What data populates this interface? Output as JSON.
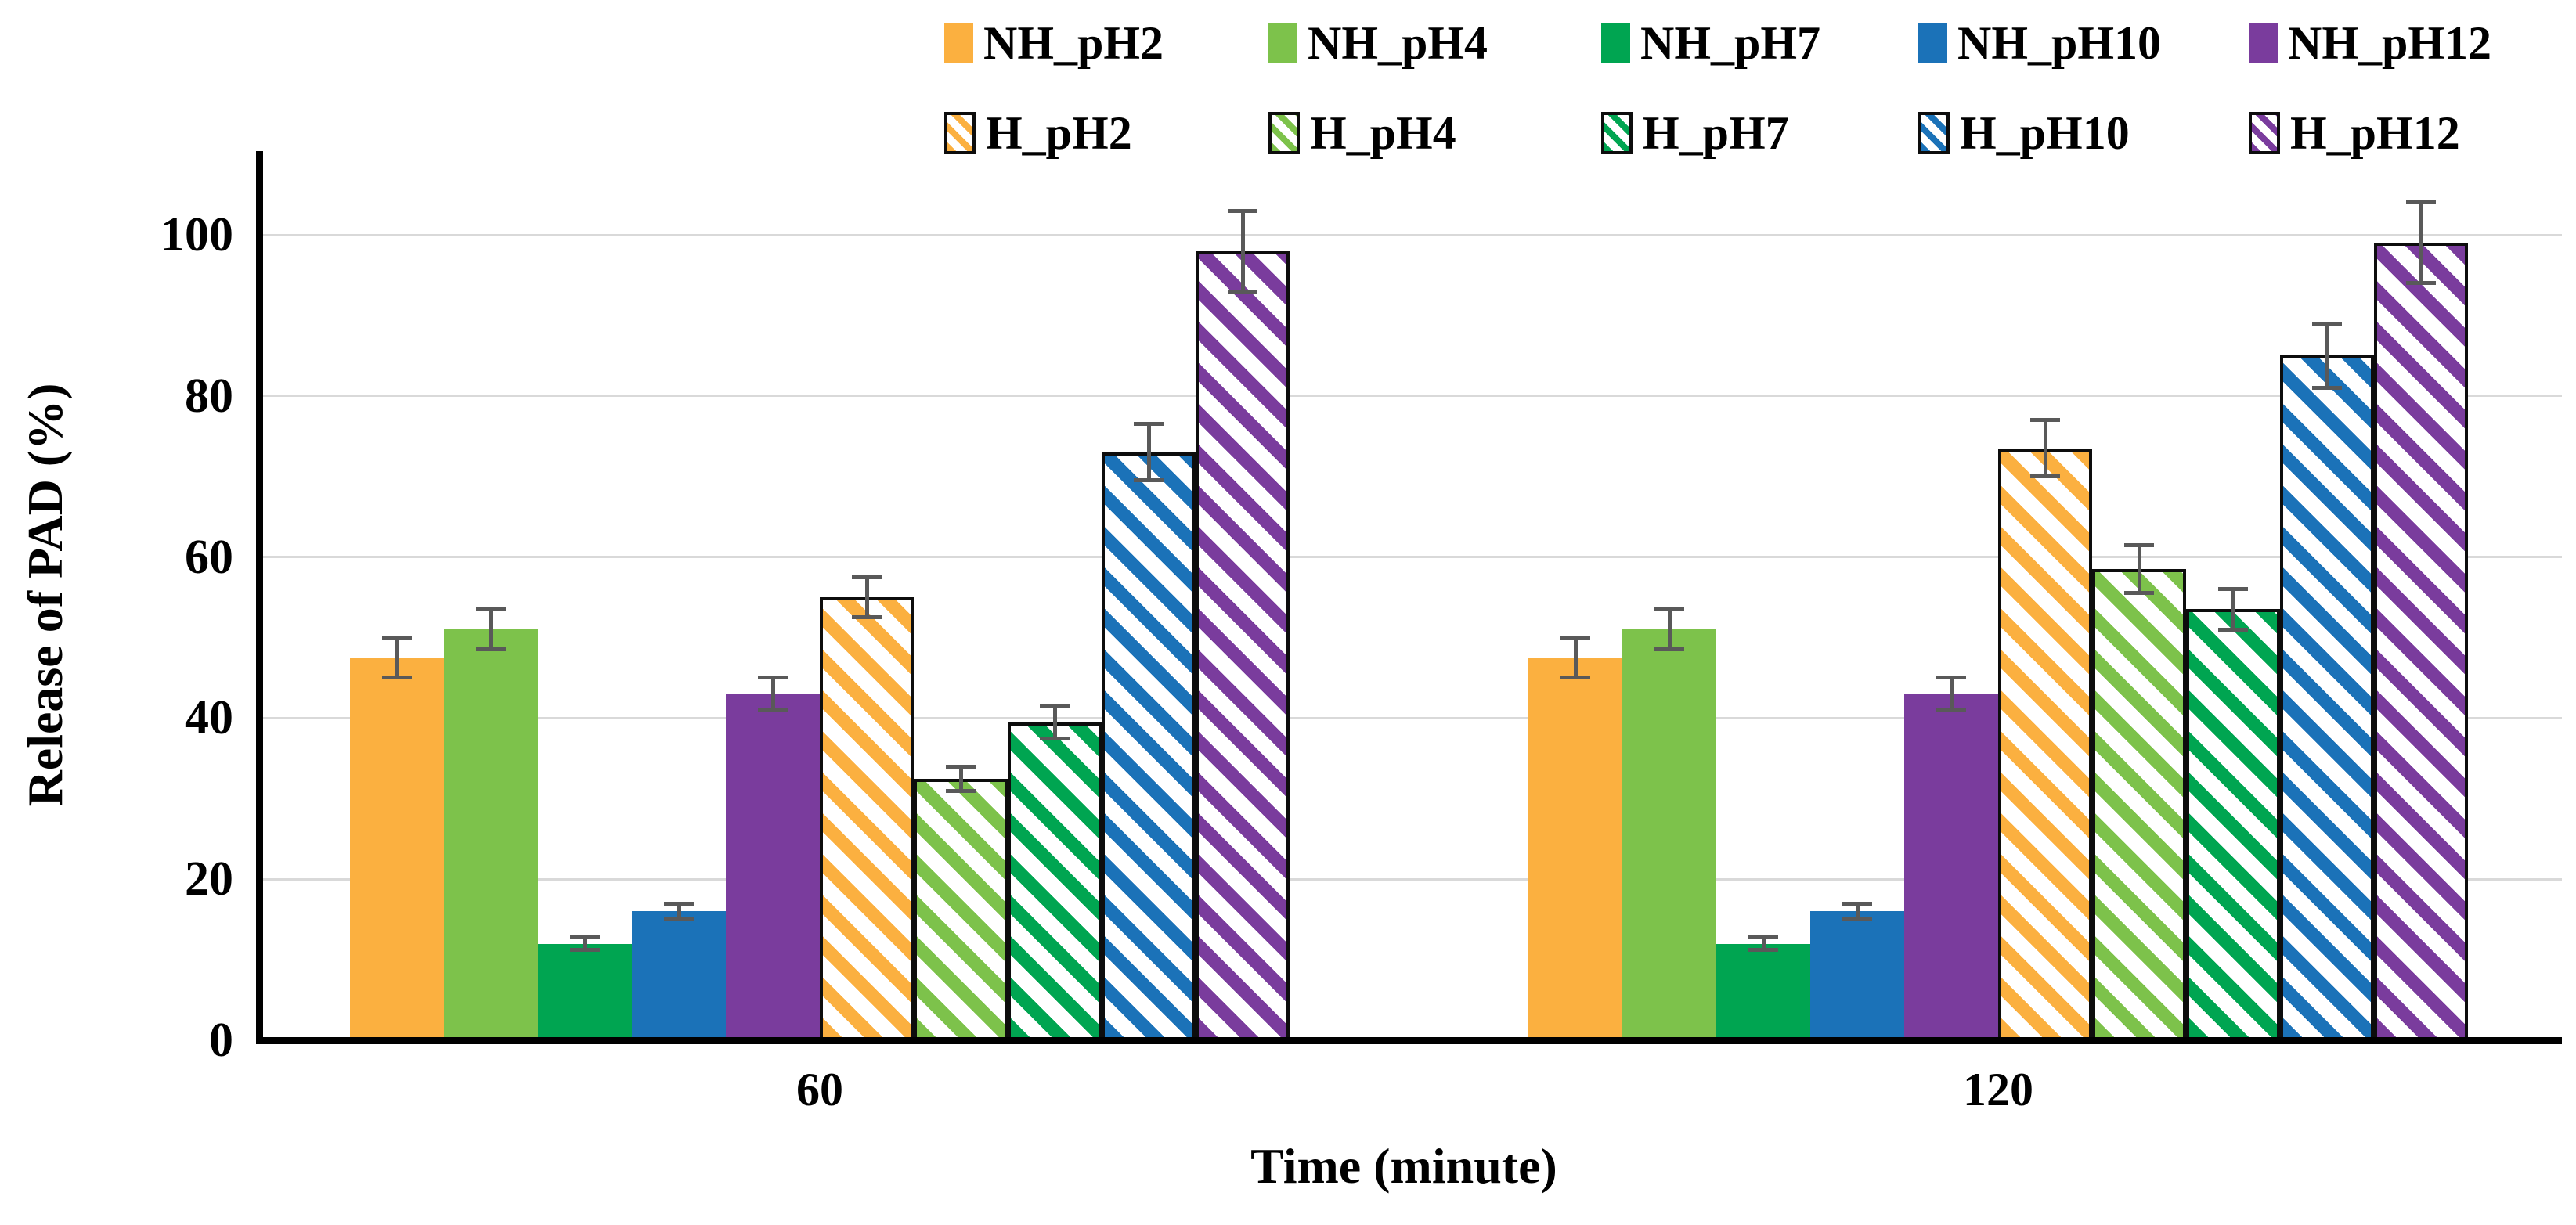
{
  "chart_data": {
    "type": "bar",
    "title": "",
    "xlabel": "Time (minute)",
    "ylabel": "Release of PAD (%)",
    "ylim": [
      0,
      110
    ],
    "yticks": [
      0,
      20,
      40,
      60,
      80,
      100
    ],
    "grid": "horizontal-only",
    "gridline_color": "#d9d9d9",
    "axis_color": "#000000",
    "error_bar_color": "#595959",
    "legend_position": "top, two rows",
    "categories": [
      "60",
      "120"
    ],
    "series": [
      {
        "name": "NH_pH2",
        "style": "solid",
        "color": "#FBB040",
        "values": [
          47.5,
          47.5
        ],
        "errors": [
          2.5,
          2.5
        ]
      },
      {
        "name": "NH_pH4",
        "style": "solid",
        "color": "#7DC24B",
        "values": [
          51.0,
          51.0
        ],
        "errors": [
          2.5,
          2.5
        ]
      },
      {
        "name": "NH_pH7",
        "style": "solid",
        "color": "#00A551",
        "values": [
          12.0,
          12.0
        ],
        "errors": [
          0.8,
          0.8
        ]
      },
      {
        "name": "NH_pH10",
        "style": "solid",
        "color": "#1B72B8",
        "values": [
          16.0,
          16.0
        ],
        "errors": [
          1.0,
          1.0
        ]
      },
      {
        "name": "NH_pH12",
        "style": "solid",
        "color": "#7A3C9D",
        "values": [
          43.0,
          43.0
        ],
        "errors": [
          2.0,
          2.0
        ]
      },
      {
        "name": "H_pH2",
        "style": "hatched",
        "color": "#FBB040",
        "values": [
          55.0,
          73.5
        ],
        "errors": [
          2.5,
          3.5
        ]
      },
      {
        "name": "H_pH4",
        "style": "hatched",
        "color": "#7DC24B",
        "values": [
          32.5,
          58.5
        ],
        "errors": [
          1.5,
          3.0
        ]
      },
      {
        "name": "H_pH7",
        "style": "hatched",
        "color": "#00A551",
        "values": [
          39.5,
          53.5
        ],
        "errors": [
          2.0,
          2.5
        ]
      },
      {
        "name": "H_pH10",
        "style": "hatched",
        "color": "#1B72B8",
        "values": [
          73.0,
          85.0
        ],
        "errors": [
          3.5,
          4.0
        ]
      },
      {
        "name": "H_pH12",
        "style": "hatched",
        "color": "#7A3C9D",
        "values": [
          98.0,
          99.0
        ],
        "errors": [
          5.0,
          5.0
        ]
      }
    ],
    "legend_rows": [
      [
        "NH_pH2",
        "NH_pH4",
        "NH_pH7",
        "NH_pH10",
        "NH_pH12"
      ],
      [
        "H_pH2",
        "H_pH4",
        "H_pH7",
        "H_pH10",
        "H_pH12"
      ]
    ]
  }
}
